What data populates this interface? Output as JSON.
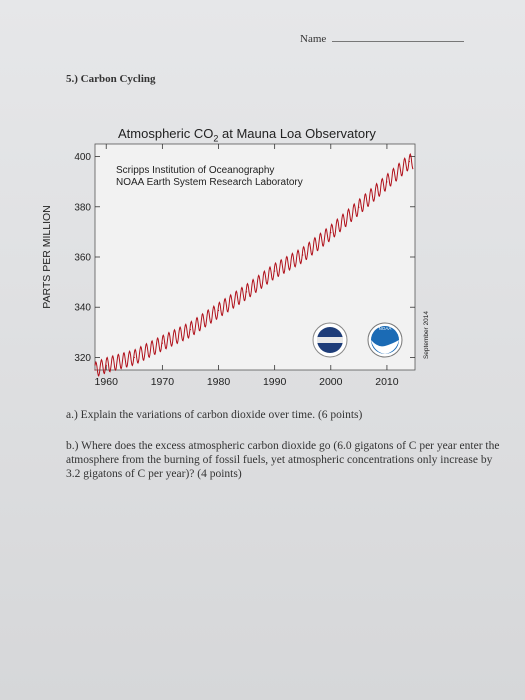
{
  "page": {
    "name_label": "Name",
    "section": "5.) Carbon Cycling",
    "question_a": "a.) Explain the variations of carbon dioxide over time. (6 points)",
    "question_b": "b.) Where does the excess atmospheric carbon dioxide go (6.0 gigatons of C per year enter the atmosphere from the burning of fossil fuels, yet atmospheric concentrations only increase by 3.2 gigatons of C per year)? (4 points)"
  },
  "chart_data": {
    "type": "line",
    "title_prefix": "Atmospheric CO",
    "title_sub": "2",
    "title_suffix": " at Mauna Loa Observatory",
    "subtitle_lines": [
      "Scripps Institution of Oceanography",
      "NOAA Earth System Research Laboratory"
    ],
    "ylabel": "PARTS PER MILLION",
    "xlabel": "",
    "xlim": [
      1958,
      2015
    ],
    "ylim": [
      315,
      405
    ],
    "xticks": [
      1960,
      1970,
      1980,
      1990,
      2000,
      2010
    ],
    "yticks": [
      320,
      340,
      360,
      380,
      400
    ],
    "date_note": "September 2014",
    "logo_noaa_text": "NOAA",
    "grid": false,
    "series_color": "#b0101a",
    "series": [
      {
        "x": [
          1958,
          1960,
          1965,
          1970,
          1975,
          1980,
          1985,
          1990,
          1995,
          2000,
          2005,
          2010,
          2014
        ],
        "y": [
          315.0,
          316.9,
          320.0,
          325.7,
          331.1,
          338.7,
          346.1,
          354.4,
          360.8,
          369.7,
          379.8,
          389.9,
          398.0
        ],
        "seasonal_amplitude_ppm": 3
      }
    ]
  }
}
